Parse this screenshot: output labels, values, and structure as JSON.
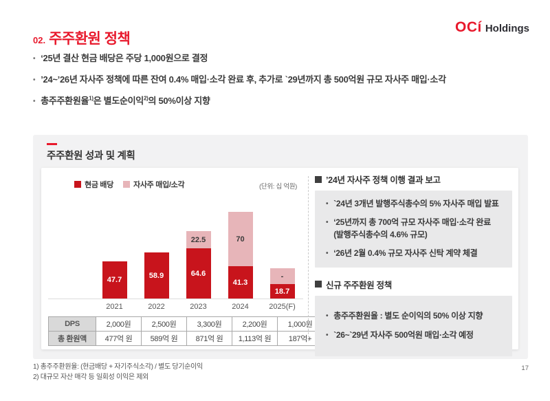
{
  "page_number": "17",
  "logo": {
    "oci": "OCí",
    "holdings": "Holdings"
  },
  "header": {
    "number": "02.",
    "title": "주주환원 정책"
  },
  "key_points": [
    {
      "segments": [
        {
          "text": "‘25년 결산 현금 배당은 주당 1,000원으로 결정",
          "sup": false
        }
      ]
    },
    {
      "segments": [
        {
          "text": "’24~’26년 자사주 정책에 따른 잔여 0.4% 매입·소각 완료 후, 추가로 `29년까지 총 500억원 규모 자사주 매입·소각",
          "sup": false
        }
      ]
    },
    {
      "segments": [
        {
          "text": "총주주환원율",
          "sup": false
        },
        {
          "text": "1)",
          "sup": true
        },
        {
          "text": "은 별도순이익",
          "sup": false
        },
        {
          "text": "2)",
          "sup": true
        },
        {
          "text": "의 50%이상 지향",
          "sup": false
        }
      ]
    }
  ],
  "section": {
    "title": "주주환원 성과 및 계획",
    "unit_label": "(단위: 십 억원)"
  },
  "chart_data": {
    "type": "bar",
    "stacked": true,
    "title": "주주환원 성과 및 계획",
    "unit": "십억원",
    "categories": [
      "2021",
      "2022",
      "2023",
      "2024",
      "2025(F)"
    ],
    "series": [
      {
        "name": "현금 배당",
        "color": "#c8141c",
        "label_color": "#ffffff",
        "values": [
          47.7,
          58.9,
          64.6,
          41.3,
          18.7
        ],
        "labels": [
          "47.7",
          "58.9",
          "64.6",
          "41.3",
          "18.7"
        ]
      },
      {
        "name": "자사주 매입/소각",
        "color": "#e7b5b9",
        "label_color": "#3a3a3a",
        "values": [
          0,
          0,
          22.5,
          70,
          20
        ],
        "labels": [
          "",
          "",
          "22.5",
          "70",
          "-"
        ],
        "note": "2025(F) buyback value undisclosed; shown as '-', bar height estimated ~20"
      }
    ],
    "ylim": [
      0,
      130
    ],
    "y_axis_visible": false,
    "legend_position": "top-left"
  },
  "table": {
    "row_headers": [
      "DPS",
      "총 환원액"
    ],
    "rows": [
      [
        "2,000원",
        "2,500원",
        "3,300원",
        "2,200원",
        "1,000원"
      ],
      [
        "477억 원",
        "589억 원",
        "871억 원",
        "1,113억 원",
        "187억+"
      ]
    ]
  },
  "policy_panel": {
    "sections": [
      {
        "heading": "’24년 자사주 정책 이행 결과 보고",
        "bullets": [
          "`24년 3개년 발행주식총수의 5% 자사주 매입 발표",
          "‘25년까지 총 700억 규모 자사주 매입·소각 완료\n(발행주식총수의 4.6% 규모)",
          "‘26년 2월 0.4% 규모 자사주 신탁 계약 체결"
        ]
      },
      {
        "heading": "신규 주주환원 정책",
        "bullets": [
          "총주주환원율 : 별도 순이익의 50% 이상 지향",
          "`26~`29년 자사주 500억원 매입·소각 예정"
        ]
      }
    ]
  },
  "footnotes": [
    "1) 총주주환원율: (현금배당 + 자기주식소각) / 별도 당기순이익",
    "2) 대규모 자산 매각 등 일회성 이익은 제외"
  ]
}
